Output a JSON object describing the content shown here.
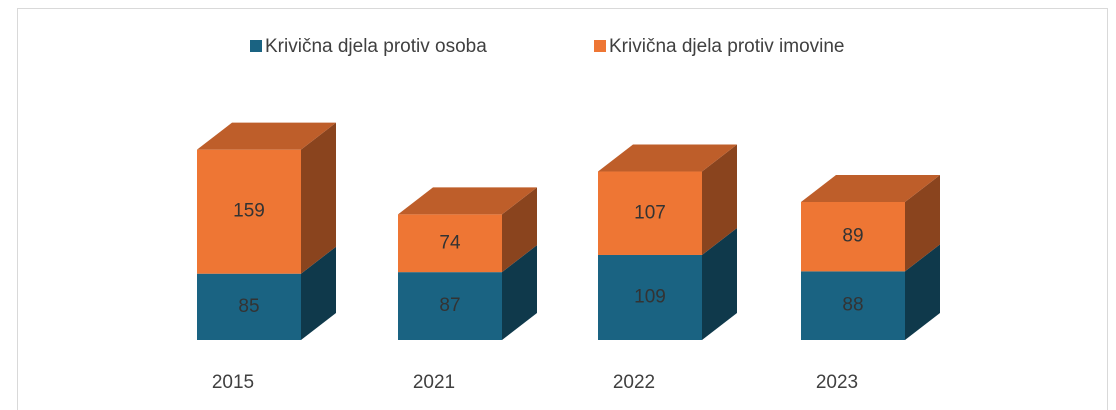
{
  "chart_data": {
    "type": "bar3d-stacked",
    "categories": [
      "2015",
      "2021",
      "2022",
      "2023"
    ],
    "series": [
      {
        "name": "Krivična djela protiv osoba",
        "color": "#1a6382",
        "values": [
          85,
          87,
          109,
          88
        ]
      },
      {
        "name": "Krivična djela protiv imovine",
        "color": "#ee7634",
        "values": [
          159,
          74,
          107,
          89
        ]
      }
    ],
    "legend": "top"
  }
}
